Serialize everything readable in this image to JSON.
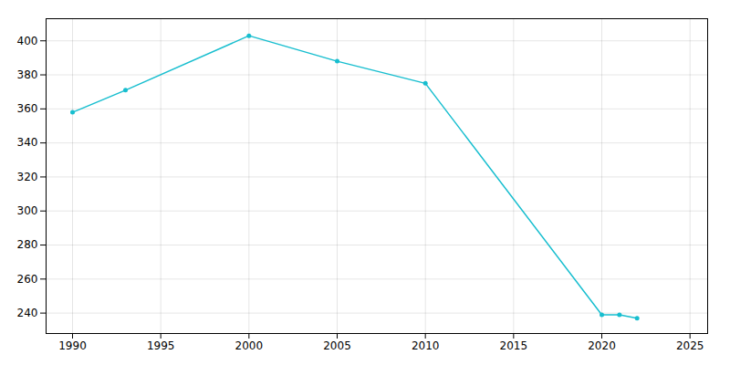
{
  "chart_data": {
    "type": "line",
    "x": [
      1990,
      1993,
      2000,
      2005,
      2010,
      2020,
      2021,
      2022
    ],
    "values": [
      358,
      371,
      403,
      388,
      375,
      239,
      239,
      237
    ],
    "color": "#17BECF",
    "marker": "circle",
    "xlim": [
      1988.5,
      2026
    ],
    "ylim": [
      228,
      413
    ],
    "xticks": [
      1990,
      1995,
      2000,
      2005,
      2010,
      2015,
      2020,
      2025
    ],
    "yticks": [
      240,
      260,
      280,
      300,
      320,
      340,
      360,
      380,
      400
    ],
    "grid": true
  }
}
